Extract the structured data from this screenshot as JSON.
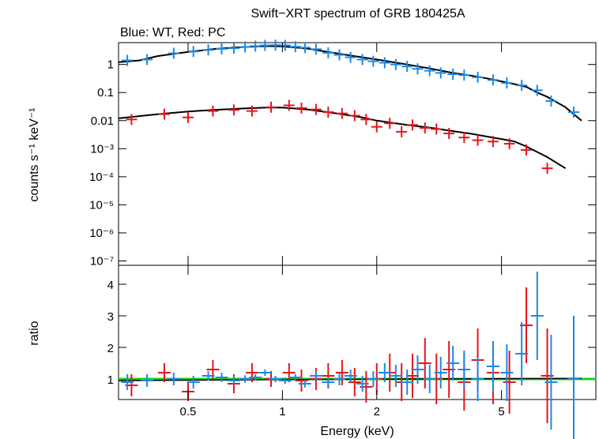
{
  "chart_data": {
    "type": "scatter",
    "title": "Swift−XRT spectrum of GRB 180425A",
    "subtitle": "Blue: WT, Red: PC",
    "xlabel": "Energy (keV)",
    "x_scale": "log",
    "xlim": [
      0.3,
      10.0
    ],
    "x_ticks": [
      {
        "v": 0.5,
        "label": "0.5"
      },
      {
        "v": 1,
        "label": "1"
      },
      {
        "v": 2,
        "label": "2"
      },
      {
        "v": 5,
        "label": "5"
      }
    ],
    "colors": {
      "wt": "#1e88e5",
      "pc": "#e8141c",
      "model": "#000000",
      "unity": "#18d418"
    },
    "top": {
      "ylabel": "counts s⁻¹ keV⁻¹",
      "y_scale": "log",
      "ylim": [
        7e-08,
        6
      ],
      "y_ticks": [
        {
          "v": 1,
          "label": "1"
        },
        {
          "v": 0.1,
          "label": "0.1"
        },
        {
          "v": 0.01,
          "label": "0.01"
        },
        {
          "v": 0.001,
          "label": "10⁻³"
        },
        {
          "v": 0.0001,
          "label": "10⁻⁴"
        },
        {
          "v": 1e-05,
          "label": "10⁻⁵"
        },
        {
          "v": 1e-06,
          "label": "10⁻⁶"
        },
        {
          "v": 1e-07,
          "label": "10⁻⁷"
        }
      ],
      "series": [
        {
          "id": "wt",
          "points": [
            [
              0.32,
              1.4
            ],
            [
              0.37,
              1.5
            ],
            [
              0.45,
              2.5
            ],
            [
              0.52,
              2.9
            ],
            [
              0.58,
              3.3
            ],
            [
              0.64,
              3.6
            ],
            [
              0.7,
              3.8
            ],
            [
              0.76,
              4.2
            ],
            [
              0.82,
              4.5
            ],
            [
              0.88,
              4.8
            ],
            [
              0.95,
              4.9
            ],
            [
              1.02,
              4.8
            ],
            [
              1.1,
              4.3
            ],
            [
              1.18,
              4.0
            ],
            [
              1.28,
              3.5
            ],
            [
              1.4,
              2.6
            ],
            [
              1.52,
              2.2
            ],
            [
              1.65,
              1.8
            ],
            [
              1.8,
              1.5
            ],
            [
              1.95,
              1.3
            ],
            [
              2.12,
              1.15
            ],
            [
              2.3,
              1.0
            ],
            [
              2.5,
              0.85
            ],
            [
              2.7,
              0.7
            ],
            [
              2.95,
              0.6
            ],
            [
              3.2,
              0.5
            ],
            [
              3.5,
              0.45
            ],
            [
              3.8,
              0.42
            ],
            [
              4.2,
              0.35
            ],
            [
              4.7,
              0.28
            ],
            [
              5.2,
              0.22
            ],
            [
              5.8,
              0.18
            ],
            [
              6.5,
              0.12
            ],
            [
              7.2,
              0.05
            ],
            [
              8.5,
              0.02
            ]
          ]
        },
        {
          "id": "pc",
          "points": [
            [
              0.33,
              0.011
            ],
            [
              0.42,
              0.017
            ],
            [
              0.5,
              0.013
            ],
            [
              0.6,
              0.022
            ],
            [
              0.7,
              0.024
            ],
            [
              0.8,
              0.022
            ],
            [
              0.92,
              0.03
            ],
            [
              1.05,
              0.035
            ],
            [
              1.15,
              0.028
            ],
            [
              1.28,
              0.025
            ],
            [
              1.4,
              0.02
            ],
            [
              1.55,
              0.018
            ],
            [
              1.7,
              0.015
            ],
            [
              1.85,
              0.011
            ],
            [
              2.0,
              0.006
            ],
            [
              2.2,
              0.008
            ],
            [
              2.4,
              0.004
            ],
            [
              2.6,
              0.007
            ],
            [
              2.85,
              0.0055
            ],
            [
              3.1,
              0.005
            ],
            [
              3.4,
              0.0035
            ],
            [
              3.8,
              0.0025
            ],
            [
              4.2,
              0.002
            ],
            [
              4.7,
              0.0018
            ],
            [
              5.3,
              0.0015
            ],
            [
              6.0,
              0.0009
            ],
            [
              7.0,
              0.0002
            ]
          ]
        }
      ],
      "model": [
        [
          0.3,
          1.2
        ],
        [
          0.35,
          1.4
        ],
        [
          0.4,
          2.0
        ],
        [
          0.5,
          2.8
        ],
        [
          0.6,
          3.5
        ],
        [
          0.7,
          4.0
        ],
        [
          0.8,
          4.3
        ],
        [
          0.9,
          4.5
        ],
        [
          1.0,
          4.4
        ],
        [
          1.2,
          3.7
        ],
        [
          1.4,
          2.8
        ],
        [
          1.6,
          2.2
        ],
        [
          1.8,
          1.8
        ],
        [
          2.0,
          1.5
        ],
        [
          2.5,
          1.0
        ],
        [
          3.0,
          0.7
        ],
        [
          3.5,
          0.5
        ],
        [
          4.0,
          0.4
        ],
        [
          4.5,
          0.32
        ],
        [
          5.0,
          0.25
        ],
        [
          5.5,
          0.2
        ],
        [
          6.0,
          0.16
        ],
        [
          6.5,
          0.1
        ],
        [
          7.0,
          0.07
        ],
        [
          8.0,
          0.03
        ],
        [
          9.0,
          0.01
        ]
      ],
      "pc_model": [
        [
          0.3,
          0.012
        ],
        [
          0.4,
          0.017
        ],
        [
          0.5,
          0.021
        ],
        [
          0.6,
          0.024
        ],
        [
          0.7,
          0.026
        ],
        [
          0.8,
          0.028
        ],
        [
          0.9,
          0.029
        ],
        [
          1.0,
          0.029
        ],
        [
          1.2,
          0.025
        ],
        [
          1.4,
          0.02
        ],
        [
          1.6,
          0.016
        ],
        [
          1.8,
          0.013
        ],
        [
          2.0,
          0.01
        ],
        [
          2.5,
          0.007
        ],
        [
          3.0,
          0.0055
        ],
        [
          3.5,
          0.0042
        ],
        [
          4.0,
          0.0034
        ],
        [
          4.5,
          0.0027
        ],
        [
          5.0,
          0.0022
        ],
        [
          5.5,
          0.0018
        ],
        [
          6.0,
          0.0012
        ],
        [
          7.0,
          0.0005
        ],
        [
          8.0,
          0.0002
        ]
      ]
    },
    "bottom": {
      "ylabel": "ratio",
      "ylim": [
        0.35,
        4.6
      ],
      "y_ticks": [
        {
          "v": 1,
          "label": "1"
        },
        {
          "v": 2,
          "label": "2"
        },
        {
          "v": 3,
          "label": "3"
        },
        {
          "v": 4,
          "label": "4"
        }
      ],
      "reference_line": 1,
      "series": [
        {
          "id": "wt",
          "points": [
            [
              0.32,
              0.9,
              0.25
            ],
            [
              0.37,
              0.95,
              0.2
            ],
            [
              0.45,
              1.0,
              0.2
            ],
            [
              0.52,
              0.9,
              0.2
            ],
            [
              0.58,
              1.1,
              0.15
            ],
            [
              0.64,
              1.05,
              0.15
            ],
            [
              0.7,
              0.95,
              0.12
            ],
            [
              0.76,
              1.0,
              0.12
            ],
            [
              0.82,
              1.05,
              0.1
            ],
            [
              0.88,
              1.2,
              0.1
            ],
            [
              0.95,
              1.0,
              0.1
            ],
            [
              1.02,
              0.95,
              0.1
            ],
            [
              1.1,
              1.05,
              0.1
            ],
            [
              1.18,
              0.85,
              0.12
            ],
            [
              1.28,
              1.1,
              0.15
            ],
            [
              1.4,
              0.9,
              0.15
            ],
            [
              1.52,
              1.0,
              0.2
            ],
            [
              1.65,
              1.1,
              0.2
            ],
            [
              1.8,
              0.85,
              0.25
            ],
            [
              1.95,
              1.0,
              0.25
            ],
            [
              2.12,
              1.2,
              0.3
            ],
            [
              2.3,
              1.1,
              0.35
            ],
            [
              2.5,
              0.9,
              0.4
            ],
            [
              2.7,
              1.3,
              0.45
            ],
            [
              2.95,
              1.0,
              0.45
            ],
            [
              3.2,
              1.2,
              0.5
            ],
            [
              3.5,
              1.5,
              0.55
            ],
            [
              3.8,
              1.3,
              0.6
            ],
            [
              4.2,
              1.0,
              0.7
            ],
            [
              4.7,
              1.4,
              0.8
            ],
            [
              5.2,
              1.2,
              0.9
            ],
            [
              5.8,
              1.8,
              1.0
            ],
            [
              6.5,
              3.0,
              1.4
            ],
            [
              7.2,
              0.9,
              1.5
            ],
            [
              8.5,
              1.0,
              2.0
            ]
          ]
        },
        {
          "id": "pc",
          "points": [
            [
              0.33,
              0.8,
              0.35
            ],
            [
              0.42,
              1.2,
              0.3
            ],
            [
              0.5,
              0.6,
              0.3
            ],
            [
              0.6,
              1.3,
              0.3
            ],
            [
              0.7,
              0.85,
              0.3
            ],
            [
              0.8,
              1.2,
              0.3
            ],
            [
              0.92,
              1.0,
              0.25
            ],
            [
              1.05,
              1.2,
              0.3
            ],
            [
              1.15,
              0.95,
              0.35
            ],
            [
              1.28,
              1.0,
              0.35
            ],
            [
              1.4,
              1.1,
              0.4
            ],
            [
              1.55,
              1.2,
              0.4
            ],
            [
              1.7,
              0.9,
              0.45
            ],
            [
              1.85,
              0.75,
              0.5
            ],
            [
              2.0,
              1.0,
              0.5
            ],
            [
              2.2,
              1.2,
              0.6
            ],
            [
              2.4,
              0.9,
              0.6
            ],
            [
              2.6,
              1.1,
              0.7
            ],
            [
              2.85,
              1.5,
              0.8
            ],
            [
              3.1,
              1.0,
              0.8
            ],
            [
              3.4,
              1.3,
              0.9
            ],
            [
              3.8,
              0.9,
              0.9
            ],
            [
              4.2,
              1.6,
              1.0
            ],
            [
              4.7,
              1.2,
              1.0
            ],
            [
              5.3,
              0.9,
              1.0
            ],
            [
              6.0,
              2.7,
              1.2
            ],
            [
              7.0,
              1.1,
              1.5
            ]
          ]
        }
      ],
      "model_points": [
        [
          0.3,
          0.95
        ],
        [
          1.0,
          0.98
        ],
        [
          3.0,
          1.0
        ],
        [
          9.0,
          1.02
        ]
      ]
    }
  }
}
